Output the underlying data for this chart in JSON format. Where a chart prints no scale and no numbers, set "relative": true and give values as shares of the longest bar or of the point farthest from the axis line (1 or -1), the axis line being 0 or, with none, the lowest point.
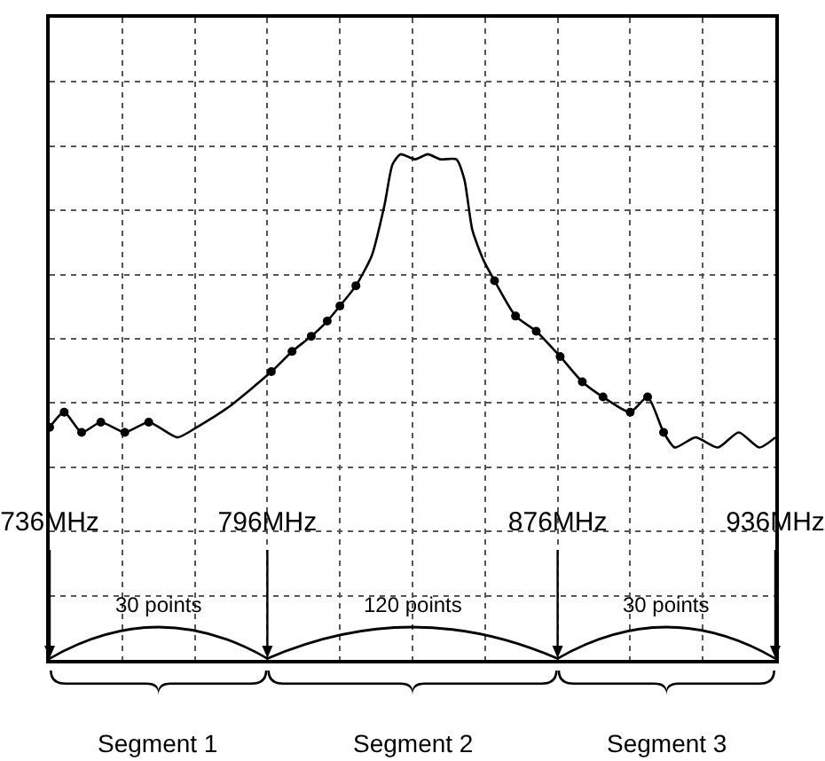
{
  "chart_data": {
    "type": "line",
    "relative": true,
    "x": [
      736,
      740,
      744.8,
      750.1,
      756.7,
      763.3,
      771.2,
      776.5,
      785.3,
      797.1,
      802.8,
      808.1,
      812.5,
      816,
      820.4,
      824.8,
      828.3,
      830.5,
      832.7,
      836.7,
      840.2,
      843.7,
      848.1,
      850.3,
      852.5,
      855.6,
      858.6,
      864.4,
      870.1,
      876.7,
      882.8,
      888.5,
      896,
      900.8,
      905.2,
      908.3,
      914,
      920.2,
      925.9,
      931.6,
      936
    ],
    "series": [
      {
        "color": "#000000",
        "values": [
          0.46,
          0.49,
          0.45,
          0.47,
          0.45,
          0.47,
          0.44,
          0.46,
          0.5,
          0.57,
          0.61,
          0.64,
          0.67,
          0.7,
          0.74,
          0.8,
          0.9,
          0.98,
          1,
          0.99,
          1,
          0.99,
          0.99,
          0.95,
          0.85,
          0.79,
          0.75,
          0.68,
          0.65,
          0.6,
          0.55,
          0.52,
          0.49,
          0.52,
          0.45,
          0.42,
          0.44,
          0.42,
          0.45,
          0.42,
          0.44
        ]
      },
      {
        "type": "scatter",
        "marker": "circle",
        "color": "#000000",
        "x": [
          736,
          740,
          744.8,
          750.1,
          756.7,
          763.3,
          797.1,
          802.8,
          808.1,
          812.5,
          816,
          820.4,
          858.6,
          864.4,
          870.1,
          876.7,
          882.8,
          888.5,
          896,
          900.8,
          905.2
        ],
        "values": [
          0.46,
          0.49,
          0.45,
          0.47,
          0.45,
          0.47,
          0.57,
          0.61,
          0.64,
          0.67,
          0.7,
          0.74,
          0.75,
          0.68,
          0.65,
          0.6,
          0.55,
          0.52,
          0.49,
          0.52,
          0.45
        ]
      }
    ],
    "xlim": [
      736,
      936
    ],
    "xticks": [
      {
        "value": 736,
        "label": "736MHz"
      },
      {
        "value": 796,
        "label": "796MHz"
      },
      {
        "value": 876,
        "label": "876MHz"
      },
      {
        "value": 936,
        "label": "936MHz"
      }
    ],
    "tick_labels": "x",
    "grid": true,
    "line_style": "solid",
    "annotations": [
      "30 points",
      "120 points",
      "30 points",
      "Segment 1",
      "Segment 2",
      "Segment 3"
    ]
  }
}
